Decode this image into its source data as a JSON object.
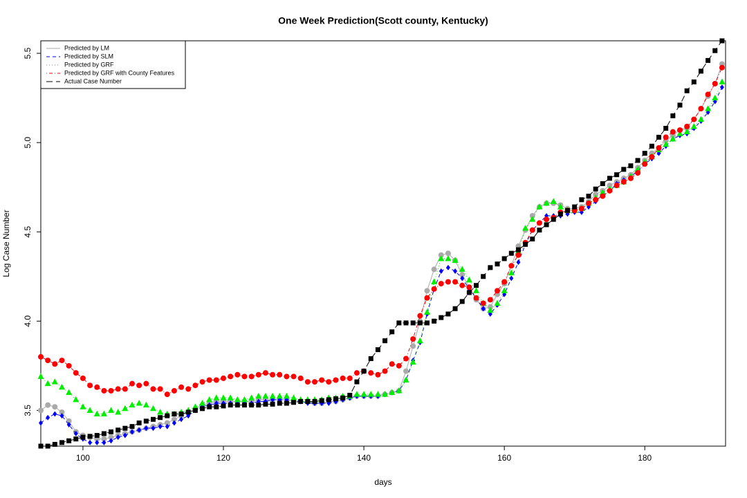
{
  "chart_data": {
    "type": "line",
    "title": "One Week Prediction(Scott county, Kentucky)",
    "x_label": "days",
    "y_label": "Log Case Number",
    "xlim": [
      94,
      191.5
    ],
    "ylim": [
      3.3,
      5.57
    ],
    "xticks": [
      100,
      120,
      140,
      160,
      180
    ],
    "yticks": [
      3.5,
      {
        "value": 4,
        "label": "4.0"
      },
      4.5,
      {
        "value": 5,
        "label": "5.0"
      },
      5.5
    ],
    "legend": "top-left",
    "x": [
      94,
      95,
      96,
      97,
      98,
      99,
      100,
      101,
      102,
      103,
      104,
      105,
      106,
      107,
      108,
      109,
      110,
      111,
      112,
      113,
      114,
      115,
      116,
      117,
      118,
      119,
      120,
      121,
      122,
      123,
      124,
      125,
      126,
      127,
      128,
      129,
      130,
      131,
      132,
      133,
      134,
      135,
      136,
      137,
      138,
      139,
      140,
      141,
      142,
      143,
      144,
      145,
      146,
      147,
      148,
      149,
      150,
      151,
      152,
      153,
      154,
      155,
      156,
      157,
      158,
      159,
      160,
      161,
      162,
      163,
      164,
      165,
      166,
      167,
      168,
      169,
      170,
      171,
      172,
      173,
      174,
      175,
      176,
      177,
      178,
      179,
      180,
      181,
      182,
      183,
      184,
      185,
      186,
      187,
      188,
      189,
      190,
      191
    ],
    "series": [
      {
        "name": "Predicted by LM",
        "color": "#aaaaaa",
        "marker": "circle",
        "dash": "solid",
        "values": [
          3.5,
          3.53,
          3.52,
          3.49,
          3.44,
          3.38,
          3.36,
          3.35,
          3.34,
          3.34,
          3.35,
          3.36,
          3.37,
          3.38,
          3.39,
          3.4,
          3.41,
          3.42,
          3.43,
          3.45,
          3.47,
          3.49,
          3.51,
          3.53,
          3.54,
          3.55,
          3.55,
          3.55,
          3.55,
          3.55,
          3.55,
          3.56,
          3.56,
          3.56,
          3.56,
          3.56,
          3.55,
          3.55,
          3.55,
          3.54,
          3.54,
          3.55,
          3.55,
          3.56,
          3.57,
          3.58,
          3.58,
          3.58,
          3.58,
          3.59,
          3.6,
          3.61,
          3.72,
          3.86,
          4.0,
          4.17,
          4.29,
          4.37,
          4.38,
          4.34,
          4.26,
          4.19,
          4.12,
          4.07,
          4.08,
          4.15,
          4.21,
          4.31,
          4.42,
          4.51,
          4.59,
          4.64,
          4.66,
          4.66,
          4.65,
          4.63,
          4.63,
          4.64,
          4.67,
          4.71,
          4.73,
          4.76,
          4.78,
          4.8,
          4.82,
          4.86,
          4.9,
          4.94,
          4.97,
          5.01,
          5.04,
          5.07,
          5.08,
          5.13,
          5.19,
          5.26,
          5.33,
          5.44
        ]
      },
      {
        "name": "Predicted by SLM",
        "color": "#0000ff",
        "marker": "diamond",
        "dash": "dashed",
        "values": [
          3.43,
          3.46,
          3.48,
          3.47,
          3.42,
          3.37,
          3.34,
          3.32,
          3.32,
          3.32,
          3.33,
          3.35,
          3.36,
          3.38,
          3.39,
          3.4,
          3.4,
          3.41,
          3.41,
          3.43,
          3.45,
          3.47,
          3.5,
          3.52,
          3.53,
          3.54,
          3.54,
          3.54,
          3.54,
          3.54,
          3.54,
          3.55,
          3.55,
          3.56,
          3.56,
          3.56,
          3.56,
          3.55,
          3.54,
          3.54,
          3.54,
          3.54,
          3.55,
          3.56,
          3.57,
          3.58,
          3.58,
          3.58,
          3.58,
          3.59,
          3.6,
          3.61,
          3.67,
          3.78,
          3.88,
          4.04,
          4.18,
          4.28,
          4.3,
          4.28,
          4.24,
          4.18,
          4.13,
          4.07,
          4.04,
          4.09,
          4.15,
          4.24,
          4.33,
          4.43,
          4.51,
          4.55,
          4.59,
          4.59,
          4.59,
          4.6,
          4.61,
          4.61,
          4.64,
          4.67,
          4.71,
          4.73,
          4.77,
          4.79,
          4.81,
          4.84,
          4.88,
          4.91,
          4.94,
          4.98,
          5.02,
          5.04,
          5.05,
          5.08,
          5.12,
          5.17,
          5.23,
          5.31
        ]
      },
      {
        "name": "Predicted by GRF",
        "color": "#00ee00",
        "marker": "triangle",
        "dash": "dotted",
        "values": [
          3.69,
          3.65,
          3.66,
          3.63,
          3.6,
          3.56,
          3.52,
          3.5,
          3.48,
          3.48,
          3.5,
          3.49,
          3.51,
          3.53,
          3.54,
          3.53,
          3.51,
          3.49,
          3.48,
          3.48,
          3.49,
          3.5,
          3.52,
          3.54,
          3.56,
          3.57,
          3.57,
          3.57,
          3.56,
          3.56,
          3.57,
          3.58,
          3.58,
          3.58,
          3.58,
          3.58,
          3.57,
          3.56,
          3.56,
          3.56,
          3.56,
          3.57,
          3.57,
          3.58,
          3.58,
          3.59,
          3.59,
          3.59,
          3.59,
          3.59,
          3.6,
          3.61,
          3.67,
          3.77,
          3.89,
          4.05,
          4.22,
          4.35,
          4.35,
          4.34,
          4.29,
          4.23,
          4.17,
          4.1,
          4.06,
          4.1,
          4.17,
          4.27,
          4.39,
          4.52,
          4.57,
          4.64,
          4.66,
          4.67,
          4.64,
          4.62,
          4.62,
          4.63,
          4.66,
          4.69,
          4.72,
          4.74,
          4.76,
          4.78,
          4.81,
          4.85,
          4.89,
          4.92,
          4.96,
          4.99,
          5.02,
          5.05,
          5.06,
          5.09,
          5.13,
          5.19,
          5.25,
          5.34
        ]
      },
      {
        "name": "Predicted by GRF with County Features",
        "color": "#ff0000",
        "marker": "circle",
        "dash": "dashdot",
        "values": [
          3.8,
          3.78,
          3.76,
          3.78,
          3.75,
          3.71,
          3.68,
          3.64,
          3.63,
          3.61,
          3.61,
          3.62,
          3.62,
          3.65,
          3.64,
          3.65,
          3.62,
          3.62,
          3.59,
          3.61,
          3.63,
          3.62,
          3.64,
          3.66,
          3.67,
          3.67,
          3.68,
          3.69,
          3.7,
          3.69,
          3.69,
          3.7,
          3.71,
          3.7,
          3.7,
          3.69,
          3.69,
          3.68,
          3.66,
          3.66,
          3.67,
          3.66,
          3.67,
          3.68,
          3.68,
          3.71,
          3.72,
          3.71,
          3.7,
          3.72,
          3.76,
          3.75,
          3.79,
          3.9,
          4.03,
          4.13,
          4.18,
          4.21,
          4.22,
          4.22,
          4.2,
          4.19,
          4.13,
          4.1,
          4.12,
          4.17,
          4.22,
          4.31,
          4.37,
          4.44,
          4.51,
          4.55,
          4.57,
          4.58,
          4.61,
          4.62,
          4.62,
          4.63,
          4.66,
          4.68,
          4.7,
          4.73,
          4.76,
          4.78,
          4.8,
          4.83,
          4.88,
          4.92,
          4.97,
          5.03,
          5.06,
          5.07,
          5.09,
          5.13,
          5.19,
          5.27,
          5.33,
          5.42
        ]
      },
      {
        "name": "Actual Case Number",
        "color": "#000000",
        "marker": "square",
        "dash": "longdash",
        "values": [
          3.3,
          3.3,
          3.31,
          3.32,
          3.33,
          3.34,
          3.35,
          3.355,
          3.36,
          3.37,
          3.38,
          3.39,
          3.4,
          3.41,
          3.43,
          3.44,
          3.45,
          3.46,
          3.47,
          3.48,
          3.48,
          3.49,
          3.5,
          3.51,
          3.52,
          3.52,
          3.525,
          3.53,
          3.53,
          3.53,
          3.53,
          3.53,
          3.535,
          3.535,
          3.54,
          3.54,
          3.545,
          3.55,
          3.55,
          3.55,
          3.555,
          3.56,
          3.565,
          3.57,
          3.585,
          3.66,
          3.72,
          3.79,
          3.84,
          3.89,
          3.94,
          3.99,
          3.99,
          3.99,
          3.99,
          3.99,
          4.0,
          4.02,
          4.04,
          4.07,
          4.11,
          4.16,
          4.2,
          4.25,
          4.3,
          4.32,
          4.35,
          4.38,
          4.4,
          4.43,
          4.46,
          4.51,
          4.54,
          4.57,
          4.6,
          4.62,
          4.64,
          4.68,
          4.7,
          4.74,
          4.77,
          4.8,
          4.82,
          4.85,
          4.87,
          4.9,
          4.94,
          4.98,
          5.03,
          5.08,
          5.15,
          5.21,
          5.29,
          5.34,
          5.4,
          5.46,
          5.515,
          5.57
        ]
      }
    ]
  }
}
